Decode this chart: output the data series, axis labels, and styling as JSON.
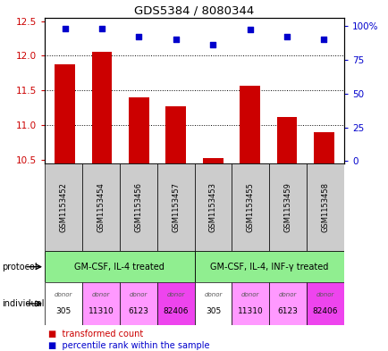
{
  "title": "GDS5384 / 8080344",
  "samples": [
    "GSM1153452",
    "GSM1153454",
    "GSM1153456",
    "GSM1153457",
    "GSM1153453",
    "GSM1153455",
    "GSM1153459",
    "GSM1153458"
  ],
  "transformed_count": [
    11.88,
    12.05,
    11.4,
    11.27,
    10.52,
    11.57,
    11.12,
    10.9
  ],
  "percentile_rank": [
    98,
    98,
    92,
    90,
    86,
    97,
    92,
    90
  ],
  "ylim_left": [
    10.45,
    12.55
  ],
  "ylim_right": [
    -1.5,
    106
  ],
  "yticks_left": [
    10.5,
    11.0,
    11.5,
    12.0,
    12.5
  ],
  "yticks_right": [
    0,
    25,
    50,
    75,
    100
  ],
  "ytick_labels_right": [
    "0",
    "25",
    "50",
    "75",
    "100%"
  ],
  "bar_color": "#cc0000",
  "dot_color": "#0000cc",
  "bar_bottom": 10.45,
  "protocol_labels": [
    "GM-CSF, IL-4 treated",
    "GM-CSF, IL-4, INF-γ treated"
  ],
  "protocol_color": "#90ee90",
  "individuals": [
    "305",
    "11310",
    "6123",
    "82406",
    "305",
    "11310",
    "6123",
    "82406"
  ],
  "individual_colors": [
    "#ffffff",
    "#ff99ff",
    "#ff99ff",
    "#ee44ee",
    "#ffffff",
    "#ff99ff",
    "#ff99ff",
    "#ee44ee"
  ],
  "left_label_color": "#cc0000",
  "right_label_color": "#0000cc",
  "sample_bg_color": "#cccccc",
  "background_color": "#ffffff"
}
